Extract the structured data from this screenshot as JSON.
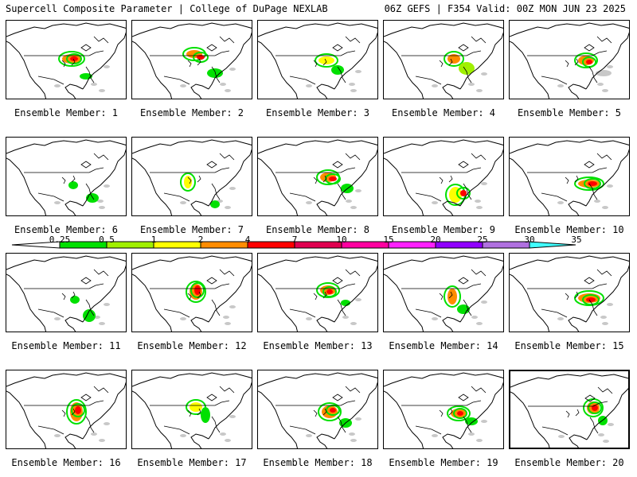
{
  "header": {
    "title": "Supercell Composite Parameter | College of DuPage NEXLAB",
    "run_info": "06Z GEFS | F354 Valid: 00Z MON JUN 23 2025"
  },
  "colorbar": {
    "labels": [
      "0.25",
      "0.5",
      "1",
      "2",
      "4",
      "7",
      "10",
      "15",
      "20",
      "25",
      "30",
      "35"
    ],
    "colors": [
      "#ffffff",
      "#00e000",
      "#a0f000",
      "#ffff00",
      "#ff8c00",
      "#ff0000",
      "#e00050",
      "#ff00a0",
      "#ff20ff",
      "#9000ff",
      "#b070e0",
      "#40ffff"
    ]
  },
  "members": [
    {
      "caption": "Ensemble Member: 1"
    },
    {
      "caption": "Ensemble Member: 2"
    },
    {
      "caption": "Ensemble Member: 3"
    },
    {
      "caption": "Ensemble Member: 4"
    },
    {
      "caption": "Ensemble Member: 5"
    },
    {
      "caption": "Ensemble Member: 6"
    },
    {
      "caption": "Ensemble Member: 7"
    },
    {
      "caption": "Ensemble Member: 8"
    },
    {
      "caption": "Ensemble Member: 9"
    },
    {
      "caption": "Ensemble Member: 10"
    },
    {
      "caption": "Ensemble Member: 11"
    },
    {
      "caption": "Ensemble Member: 12"
    },
    {
      "caption": "Ensemble Member: 13"
    },
    {
      "caption": "Ensemble Member: 14"
    },
    {
      "caption": "Ensemble Member: 15"
    },
    {
      "caption": "Ensemble Member: 16"
    },
    {
      "caption": "Ensemble Member: 17"
    },
    {
      "caption": "Ensemble Member: 18"
    },
    {
      "caption": "Ensemble Member: 19"
    },
    {
      "caption": "Ensemble Member: 20"
    }
  ]
}
